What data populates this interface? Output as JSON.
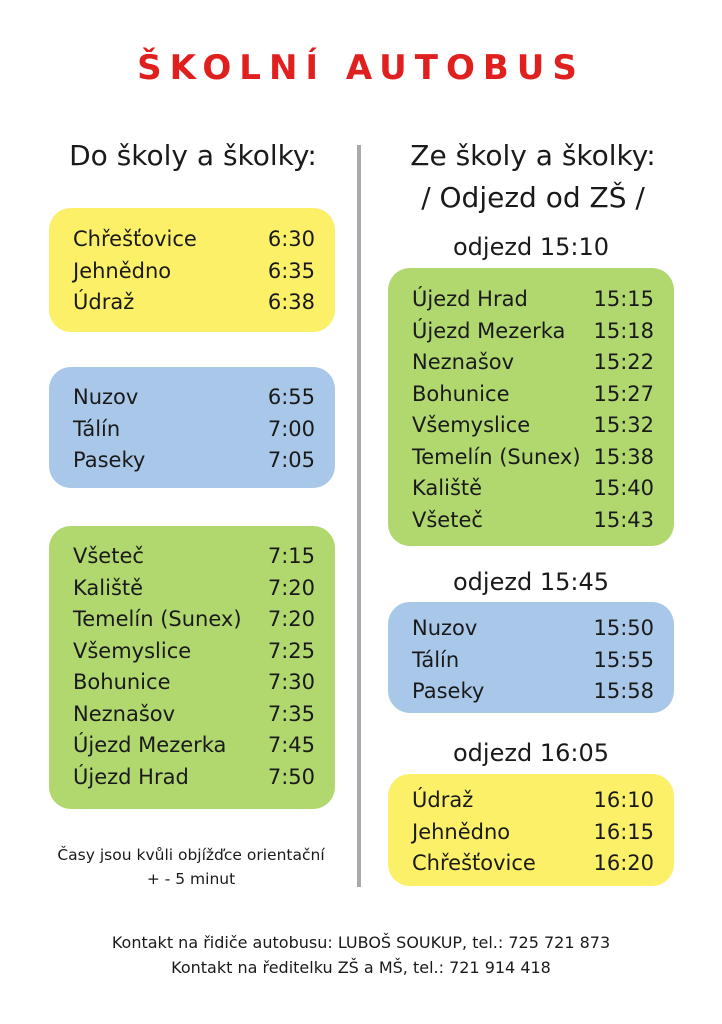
{
  "title": "ŠKOLNÍ AUTOBUS",
  "left": {
    "heading": "Do školy a školky:",
    "groups": [
      {
        "color": "yellow",
        "stops": [
          {
            "name": "Chřešťovice",
            "time": "6:30"
          },
          {
            "name": "Jehnědno",
            "time": "6:35"
          },
          {
            "name": "Údraž",
            "time": "6:38"
          }
        ]
      },
      {
        "color": "blue",
        "stops": [
          {
            "name": "Nuzov",
            "time": "6:55"
          },
          {
            "name": "Tálín",
            "time": "7:00"
          },
          {
            "name": "Paseky",
            "time": "7:05"
          }
        ]
      },
      {
        "color": "green",
        "stops": [
          {
            "name": "Všeteč",
            "time": "7:15"
          },
          {
            "name": "Kaliště",
            "time": "7:20"
          },
          {
            "name": "Temelín (Sunex)",
            "time": "7:20"
          },
          {
            "name": "Všemyslice",
            "time": "7:25"
          },
          {
            "name": "Bohunice",
            "time": "7:30"
          },
          {
            "name": "Neznašov",
            "time": "7:35"
          },
          {
            "name": "Újezd Mezerka",
            "time": "7:45"
          },
          {
            "name": "Újezd Hrad",
            "time": "7:50"
          }
        ]
      }
    ],
    "note_line1": "Časy jsou kvůli objížďce orientační",
    "note_line2": "+ - 5 minut"
  },
  "right": {
    "heading_line1": "Ze školy a školky:",
    "heading_line2": "/ Odjezd od ZŠ /",
    "groups": [
      {
        "departure": "odjezd 15:10",
        "color": "green",
        "stops": [
          {
            "name": "Újezd Hrad",
            "time": "15:15"
          },
          {
            "name": "Újezd Mezerka",
            "time": "15:18"
          },
          {
            "name": "Neznašov",
            "time": "15:22"
          },
          {
            "name": "Bohunice",
            "time": "15:27"
          },
          {
            "name": "Všemyslice",
            "time": "15:32"
          },
          {
            "name": "Temelín (Sunex)",
            "time": "15:38"
          },
          {
            "name": "Kaliště",
            "time": "15:40"
          },
          {
            "name": "Všeteč",
            "time": "15:43"
          }
        ]
      },
      {
        "departure": "odjezd 15:45",
        "color": "blue",
        "stops": [
          {
            "name": "Nuzov",
            "time": "15:50"
          },
          {
            "name": "Tálín",
            "time": "15:55"
          },
          {
            "name": "Paseky",
            "time": "15:58"
          }
        ]
      },
      {
        "departure": "odjezd 16:05",
        "color": "yellow",
        "stops": [
          {
            "name": "Údraž",
            "time": "16:10"
          },
          {
            "name": "Jehnědno",
            "time": "16:15"
          },
          {
            "name": "Chřešťovice",
            "time": "16:20"
          }
        ]
      }
    ]
  },
  "footer": {
    "line1": "Kontakt na řidiče autobusu: LUBOŠ SOUKUP, tel.: 725 721 873",
    "line2": "Kontakt na ředitelku ZŠ a MŠ, tel.: 721 914 418"
  },
  "colors": {
    "title": "#e0201f",
    "yellow": "#fcf068",
    "blue": "#a9c8e9",
    "green": "#b1d76f",
    "divider": "#a9a9a9"
  }
}
